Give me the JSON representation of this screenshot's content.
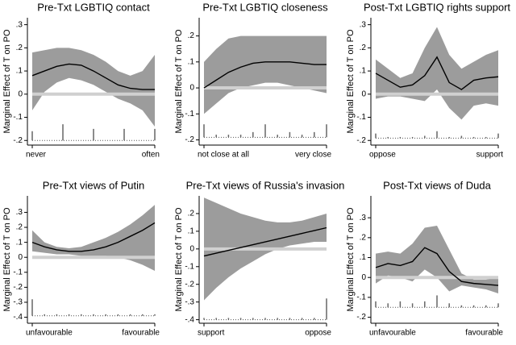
{
  "chart_data": [
    {
      "type": "line",
      "title": "Pre-Txt LGBTIQ contact",
      "ylabel": "Marginal Effect of T on PO",
      "x": [
        0,
        0.1,
        0.2,
        0.3,
        0.4,
        0.5,
        0.6,
        0.7,
        0.8,
        0.9,
        1
      ],
      "values": [
        0.08,
        0.1,
        0.12,
        0.13,
        0.125,
        0.1,
        0.07,
        0.04,
        0.025,
        0.02,
        0.02
      ],
      "ci_upper": [
        0.18,
        0.19,
        0.2,
        0.2,
        0.19,
        0.17,
        0.14,
        0.1,
        0.08,
        0.1,
        0.17
      ],
      "ci_lower": [
        -0.07,
        0.01,
        0.05,
        0.07,
        0.06,
        0.04,
        0.01,
        -0.02,
        -0.04,
        -0.07,
        -0.14
      ],
      "color": "#000000",
      "band_color": "#9c9c9c",
      "reference_line": 0,
      "reference_color": "#d0d0d0",
      "rug": {
        "x": [
          0,
          0.25,
          0.5,
          0.75,
          1
        ],
        "values": [
          -0.16,
          -0.13,
          -0.15,
          -0.15,
          -0.15
        ]
      },
      "rug_base": -0.2,
      "xlim": [
        0,
        1
      ],
      "xticks": [
        {
          "value": 0,
          "label": "never"
        },
        {
          "value": 1,
          "label": "often"
        }
      ],
      "ylim": [
        -0.22,
        0.33
      ],
      "yticks": [
        {
          "value": -0.2,
          "label": "-.2"
        },
        {
          "value": -0.1,
          "label": "-.1"
        },
        0,
        {
          "value": 0.1,
          "label": ".1"
        },
        {
          "value": 0.2,
          "label": ".2"
        },
        {
          "value": 0.3,
          "label": ".3"
        }
      ]
    },
    {
      "type": "line",
      "title": "Pre-Txt LGBTIQ closeness",
      "ylabel": "Marginal Effect of T on PO",
      "x": [
        0,
        0.1,
        0.2,
        0.3,
        0.4,
        0.5,
        0.6,
        0.7,
        0.8,
        0.9,
        1
      ],
      "values": [
        0,
        0.03,
        0.06,
        0.08,
        0.095,
        0.1,
        0.1,
        0.1,
        0.095,
        0.09,
        0.09
      ],
      "ci_upper": [
        0.1,
        0.15,
        0.19,
        0.2,
        0.2,
        0.2,
        0.2,
        0.2,
        0.2,
        0.2,
        0.2
      ],
      "ci_lower": [
        -0.1,
        -0.06,
        -0.02,
        0,
        0.01,
        0.02,
        0.02,
        0.01,
        0,
        -0.01,
        -0.02
      ],
      "color": "#000000",
      "band_color": "#9c9c9c",
      "reference_line": 0,
      "reference_color": "#d0d0d0",
      "rug": {
        "x": [
          0,
          0.1,
          0.2,
          0.3,
          0.4,
          0.5,
          0.6,
          0.7,
          0.8,
          0.9,
          1
        ],
        "values": [
          -0.14,
          -0.18,
          -0.18,
          -0.18,
          -0.17,
          -0.14,
          -0.18,
          -0.17,
          -0.18,
          -0.17,
          -0.14
        ]
      },
      "rug_base": -0.19,
      "xlim": [
        0,
        1
      ],
      "xticks": [
        {
          "value": 0,
          "label": "not close at all"
        },
        {
          "value": 1,
          "label": "very close"
        }
      ],
      "ylim": [
        -0.22,
        0.27
      ],
      "yticks": [
        {
          "value": -0.2,
          "label": "-.2"
        },
        {
          "value": -0.1,
          "label": "-.1"
        },
        0,
        {
          "value": 0.1,
          "label": ".1"
        },
        {
          "value": 0.2,
          "label": ".2"
        }
      ]
    },
    {
      "type": "line",
      "title": "Post-Txt LGBTIQ rights support",
      "ylabel": "Marginal Effect of T on PO",
      "x": [
        0,
        0.1,
        0.2,
        0.3,
        0.4,
        0.5,
        0.6,
        0.7,
        0.8,
        0.9,
        1
      ],
      "values": [
        0.09,
        0.06,
        0.03,
        0.04,
        0.08,
        0.16,
        0.05,
        0.02,
        0.06,
        0.07,
        0.075
      ],
      "ci_upper": [
        0.15,
        0.11,
        0.07,
        0.09,
        0.2,
        0.29,
        0.17,
        0.11,
        0.14,
        0.17,
        0.19
      ],
      "ci_lower": [
        -0.02,
        -0.01,
        -0.01,
        -0.02,
        -0.03,
        0.02,
        -0.06,
        -0.11,
        -0.05,
        -0.04,
        -0.05
      ],
      "color": "#000000",
      "band_color": "#9c9c9c",
      "reference_line": 0,
      "reference_color": "#d0d0d0",
      "rug": {
        "x": [
          0,
          0.1,
          0.2,
          0.3,
          0.4,
          0.5,
          0.6,
          0.7,
          0.8,
          0.9,
          1
        ],
        "values": [
          -0.17,
          -0.185,
          -0.185,
          -0.185,
          -0.18,
          -0.16,
          -0.185,
          -0.18,
          -0.185,
          -0.185,
          -0.17
        ]
      },
      "rug_base": -0.19,
      "xlim": [
        0,
        1
      ],
      "xticks": [
        {
          "value": 0,
          "label": "oppose"
        },
        {
          "value": 1,
          "label": "support"
        }
      ],
      "ylim": [
        -0.22,
        0.33
      ],
      "yticks": [
        {
          "value": -0.2,
          "label": "-.2"
        },
        {
          "value": -0.1,
          "label": "-.1"
        },
        0,
        {
          "value": 0.1,
          "label": ".1"
        },
        {
          "value": 0.2,
          "label": ".2"
        },
        {
          "value": 0.3,
          "label": ".3"
        }
      ]
    },
    {
      "type": "line",
      "title": "Pre-Txt views of Putin",
      "ylabel": "Marginal Effect of T on PO",
      "x": [
        0,
        0.1,
        0.2,
        0.3,
        0.4,
        0.5,
        0.6,
        0.7,
        0.8,
        0.9,
        1
      ],
      "values": [
        0.1,
        0.07,
        0.05,
        0.04,
        0.04,
        0.05,
        0.07,
        0.1,
        0.14,
        0.18,
        0.23
      ],
      "ci_upper": [
        0.18,
        0.1,
        0.07,
        0.06,
        0.07,
        0.1,
        0.13,
        0.17,
        0.22,
        0.28,
        0.35
      ],
      "ci_lower": [
        0.04,
        0.03,
        0.02,
        0.02,
        0.01,
        0.01,
        0.01,
        0,
        -0.02,
        -0.05,
        -0.09
      ],
      "color": "#000000",
      "band_color": "#9c9c9c",
      "reference_line": 0,
      "reference_color": "#d0d0d0",
      "rug": {
        "x": [
          0,
          0.1,
          0.2,
          0.3,
          0.4,
          0.5,
          0.6,
          0.7,
          0.8,
          0.9,
          1
        ],
        "values": [
          -0.28,
          -0.38,
          -0.38,
          -0.38,
          -0.38,
          -0.38,
          -0.38,
          -0.38,
          -0.38,
          -0.38,
          -0.38
        ]
      },
      "rug_base": -0.39,
      "xlim": [
        0,
        1
      ],
      "xticks": [
        {
          "value": 0,
          "label": "unfavourable"
        },
        {
          "value": 1,
          "label": "favourable"
        }
      ],
      "ylim": [
        -0.44,
        0.41
      ],
      "yticks": [
        {
          "value": -0.4,
          "label": "-.4"
        },
        {
          "value": -0.3,
          "label": "-.3"
        },
        {
          "value": -0.2,
          "label": "-.2"
        },
        {
          "value": -0.1,
          "label": "-.1"
        },
        0,
        {
          "value": 0.1,
          "label": ".1"
        },
        {
          "value": 0.2,
          "label": ".2"
        },
        {
          "value": 0.3,
          "label": ".3"
        }
      ]
    },
    {
      "type": "line",
      "title": "Pre-Txt views of Russia's invasion",
      "ylabel": "Marginal Effect of T on PO",
      "x": [
        0,
        0.1,
        0.2,
        0.3,
        0.4,
        0.5,
        0.6,
        0.7,
        0.8,
        0.9,
        1
      ],
      "values": [
        -0.04,
        -0.024,
        -0.008,
        0.008,
        0.024,
        0.04,
        0.056,
        0.072,
        0.088,
        0.104,
        0.12
      ],
      "ci_upper": [
        0.29,
        0.26,
        0.23,
        0.2,
        0.18,
        0.16,
        0.15,
        0.15,
        0.16,
        0.18,
        0.2
      ],
      "ci_lower": [
        -0.29,
        -0.22,
        -0.16,
        -0.11,
        -0.07,
        -0.03,
        0,
        0.02,
        0.03,
        0.04,
        0.04
      ],
      "color": "#000000",
      "band_color": "#9c9c9c",
      "reference_line": 0,
      "reference_color": "#d0d0d0",
      "rug": {
        "x": [
          0,
          0.1,
          0.2,
          0.3,
          0.4,
          0.5,
          0.6,
          0.7,
          0.8,
          0.9,
          1
        ],
        "values": [
          -0.39,
          -0.39,
          -0.39,
          -0.39,
          -0.39,
          -0.39,
          -0.39,
          -0.39,
          -0.39,
          -0.39,
          -0.28
        ]
      },
      "rug_base": -0.4,
      "xlim": [
        0,
        1
      ],
      "xticks": [
        {
          "value": 0,
          "label": "support"
        },
        {
          "value": 1,
          "label": "oppose"
        }
      ],
      "ylim": [
        -0.42,
        0.3
      ],
      "yticks": [
        {
          "value": -0.4,
          "label": "-.4"
        },
        {
          "value": -0.3,
          "label": "-.3"
        },
        {
          "value": -0.2,
          "label": "-.2"
        },
        {
          "value": -0.1,
          "label": "-.1"
        },
        0,
        {
          "value": 0.1,
          "label": ".1"
        },
        {
          "value": 0.2,
          "label": ".2"
        }
      ]
    },
    {
      "type": "line",
      "title": "Post-Txt views of Duda",
      "ylabel": "Marginal Effect of T on PO",
      "x": [
        0,
        0.1,
        0.2,
        0.3,
        0.4,
        0.5,
        0.6,
        0.7,
        0.8,
        0.9,
        1
      ],
      "values": [
        0.05,
        0.07,
        0.06,
        0.08,
        0.15,
        0.12,
        0.03,
        -0.02,
        -0.03,
        -0.035,
        -0.04
      ],
      "ci_upper": [
        0.12,
        0.13,
        0.12,
        0.17,
        0.25,
        0.26,
        0.14,
        0.02,
        -0.01,
        -0.01,
        0
      ],
      "ci_lower": [
        -0.03,
        0.01,
        0,
        -0.02,
        0.04,
        0,
        -0.07,
        -0.04,
        -0.05,
        -0.06,
        -0.08
      ],
      "color": "#000000",
      "band_color": "#9c9c9c",
      "reference_line": 0,
      "reference_color": "#d0d0d0",
      "rug": {
        "x": [
          0,
          0.1,
          0.2,
          0.3,
          0.4,
          0.5,
          0.6,
          0.7,
          0.8,
          0.9,
          1
        ],
        "values": [
          -0.12,
          -0.13,
          -0.12,
          -0.13,
          -0.12,
          -0.09,
          -0.13,
          -0.14,
          -0.14,
          -0.14,
          -0.13
        ]
      },
      "rug_base": -0.15,
      "xlim": [
        0,
        1
      ],
      "xticks": [
        {
          "value": 0,
          "label": "unfavourable"
        },
        {
          "value": 1,
          "label": "favourable"
        }
      ],
      "ylim": [
        -0.23,
        0.41
      ],
      "yticks": [
        {
          "value": -0.2,
          "label": "-.2"
        },
        {
          "value": -0.1,
          "label": "-.1"
        },
        0,
        {
          "value": 0.1,
          "label": ".1"
        },
        {
          "value": 0.2,
          "label": ".2"
        },
        {
          "value": 0.3,
          "label": ".3"
        }
      ]
    }
  ]
}
